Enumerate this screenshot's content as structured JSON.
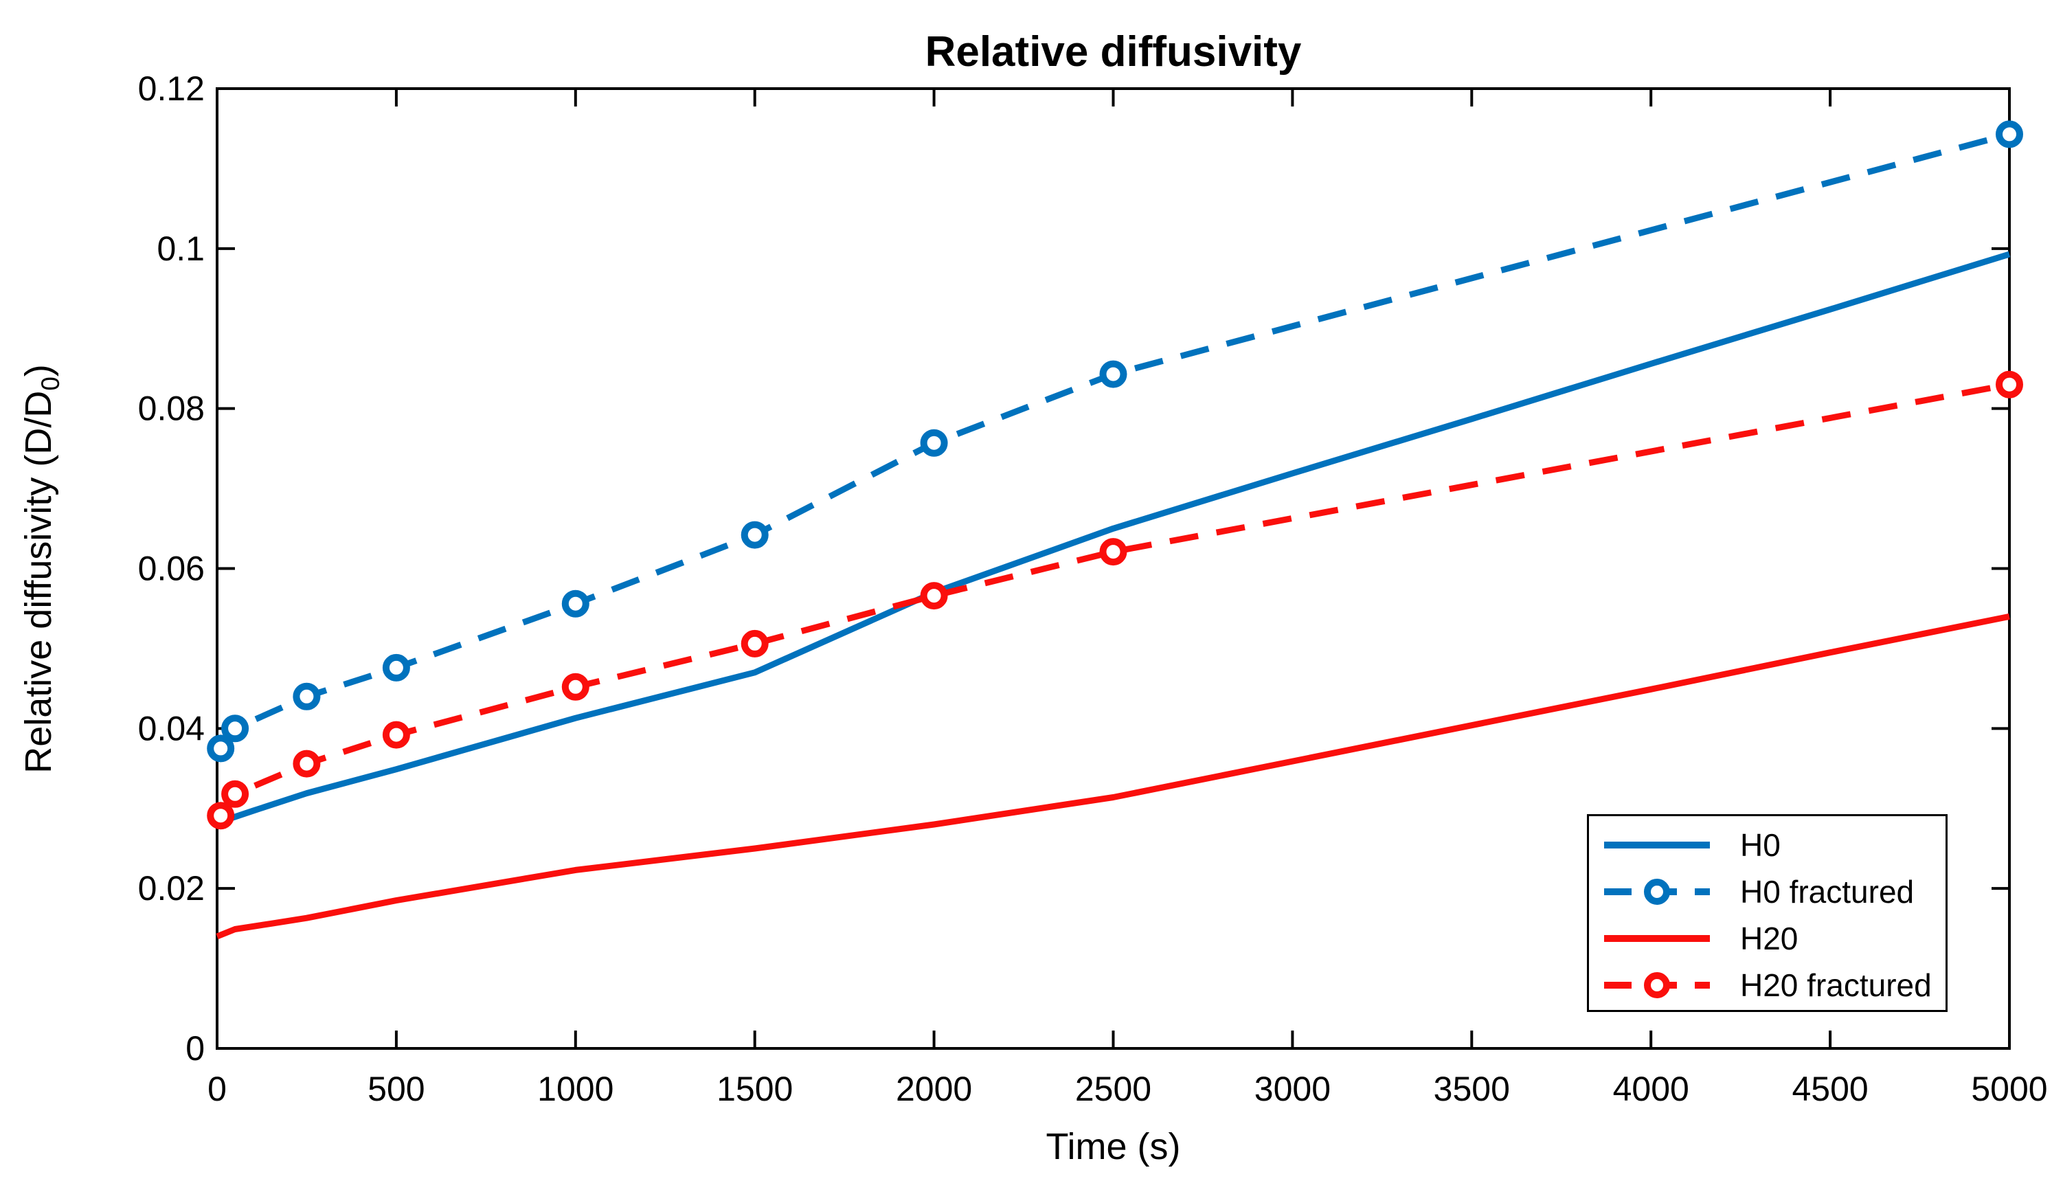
{
  "chart_data": {
    "type": "line",
    "title": "Relative diffusivity",
    "xlabel": "Time (s)",
    "ylabel": "Relative diffusivity (D/D0)",
    "ylabel_pre": "Relative diffusivity (D/D",
    "ylabel_sub": "0",
    "ylabel_post": ")",
    "xlim": [
      0,
      5000
    ],
    "ylim": [
      0,
      0.12
    ],
    "grid": false,
    "box": true,
    "tick_direction": "in",
    "xticks": [
      0,
      500,
      1000,
      1500,
      2000,
      2500,
      3000,
      3500,
      4000,
      4500,
      5000
    ],
    "xtick_labels": [
      "0",
      "500",
      "1000",
      "1500",
      "2000",
      "2500",
      "3000",
      "3500",
      "4000",
      "4500",
      "5000"
    ],
    "yticks": [
      0,
      0.02,
      0.04,
      0.06,
      0.08,
      0.1,
      0.12
    ],
    "ytick_labels": [
      "0",
      "0.02",
      "0.04",
      "0.06",
      "0.08",
      "0.1",
      "0.12"
    ],
    "legend_position": "southeast",
    "colors": {
      "blue": "#0072BD",
      "red": "#FA0F0C",
      "axis": "#000000"
    },
    "series": [
      {
        "name": "H0",
        "color": "#0072BD",
        "style": "solid",
        "marker": "none",
        "x": [
          0,
          100,
          250,
          500,
          1000,
          1500,
          2000,
          2500,
          3000,
          3500,
          4000,
          4500,
          5000
        ],
        "y": [
          0.0282,
          0.0297,
          0.0319,
          0.0349,
          0.0413,
          0.047,
          0.057,
          0.065,
          0.0719,
          0.0787,
          0.0856,
          0.0924,
          0.0993
        ]
      },
      {
        "name": "H0 fractured",
        "color": "#0072BD",
        "style": "dashed",
        "marker": "circle",
        "x": [
          10,
          50,
          250,
          500,
          1000,
          1500,
          2000,
          2500,
          5000
        ],
        "y": [
          0.0375,
          0.04,
          0.044,
          0.0476,
          0.0556,
          0.0642,
          0.0757,
          0.0843,
          0.1143
        ]
      },
      {
        "name": "H20",
        "color": "#FA0F0C",
        "style": "solid",
        "marker": "none",
        "x": [
          0,
          50,
          150,
          250,
          500,
          1000,
          1500,
          2000,
          2500,
          3000,
          3500,
          4000,
          4500,
          5000
        ],
        "y": [
          0.014,
          0.0149,
          0.0156,
          0.0163,
          0.0185,
          0.0223,
          0.025,
          0.028,
          0.0314,
          0.0359,
          0.0404,
          0.0449,
          0.0495,
          0.054
        ]
      },
      {
        "name": "H20 fractured",
        "color": "#FA0F0C",
        "style": "dashed",
        "marker": "circle",
        "x": [
          10,
          50,
          250,
          500,
          1000,
          1500,
          2000,
          2500,
          5000
        ],
        "y": [
          0.0291,
          0.0318,
          0.0356,
          0.0392,
          0.0452,
          0.0506,
          0.0566,
          0.0621,
          0.083
        ]
      }
    ]
  }
}
